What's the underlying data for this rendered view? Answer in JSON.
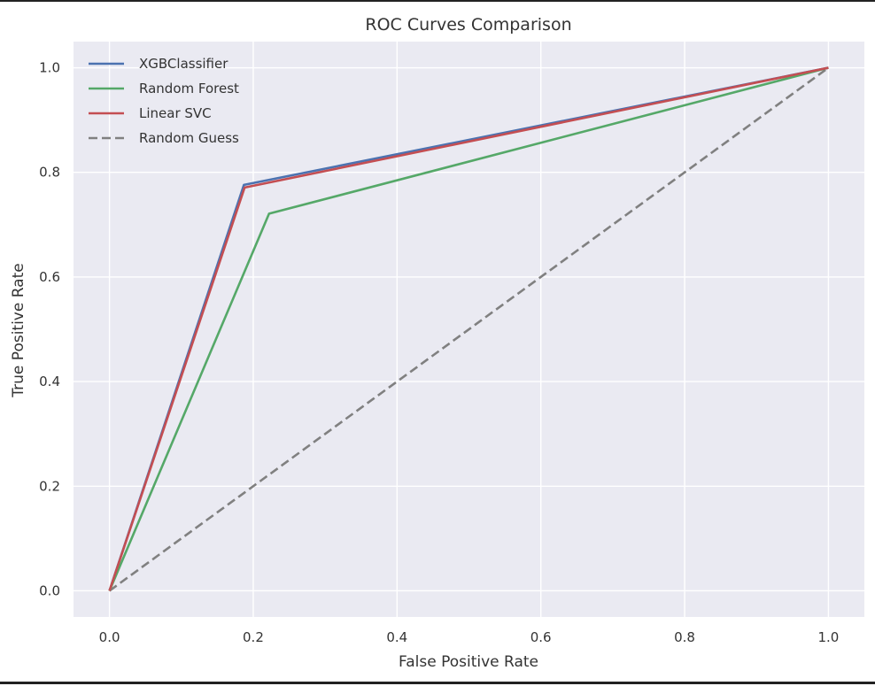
{
  "chart_data": {
    "type": "line",
    "title": "ROC Curves Comparison",
    "xlabel": "False Positive Rate",
    "ylabel": "True Positive Rate",
    "xlim": [
      -0.05,
      1.05
    ],
    "ylim": [
      -0.05,
      1.05
    ],
    "xticks": [
      0.0,
      0.2,
      0.4,
      0.6,
      0.8,
      1.0
    ],
    "yticks": [
      0.0,
      0.2,
      0.4,
      0.6,
      0.8,
      1.0
    ],
    "xtick_labels": [
      "0.0",
      "0.2",
      "0.4",
      "0.6",
      "0.8",
      "1.0"
    ],
    "ytick_labels": [
      "0.0",
      "0.2",
      "0.4",
      "0.6",
      "0.8",
      "1.0"
    ],
    "grid": true,
    "legend_position": "top-left",
    "series": [
      {
        "name": "XGBClassifier",
        "color": "#4C72B0",
        "style": "solid",
        "x": [
          0.0,
          0.187,
          1.0
        ],
        "y": [
          0.0,
          0.776,
          1.0
        ]
      },
      {
        "name": "Random Forest",
        "color": "#55A868",
        "style": "solid",
        "x": [
          0.0,
          0.222,
          1.0
        ],
        "y": [
          0.0,
          0.721,
          1.0
        ]
      },
      {
        "name": "Linear SVC",
        "color": "#C44E52",
        "style": "solid",
        "x": [
          0.0,
          0.188,
          1.0
        ],
        "y": [
          0.0,
          0.771,
          1.0
        ]
      },
      {
        "name": "Random Guess",
        "color": "#808080",
        "style": "dashed",
        "x": [
          0.0,
          1.0
        ],
        "y": [
          0.0,
          1.0
        ]
      }
    ]
  }
}
